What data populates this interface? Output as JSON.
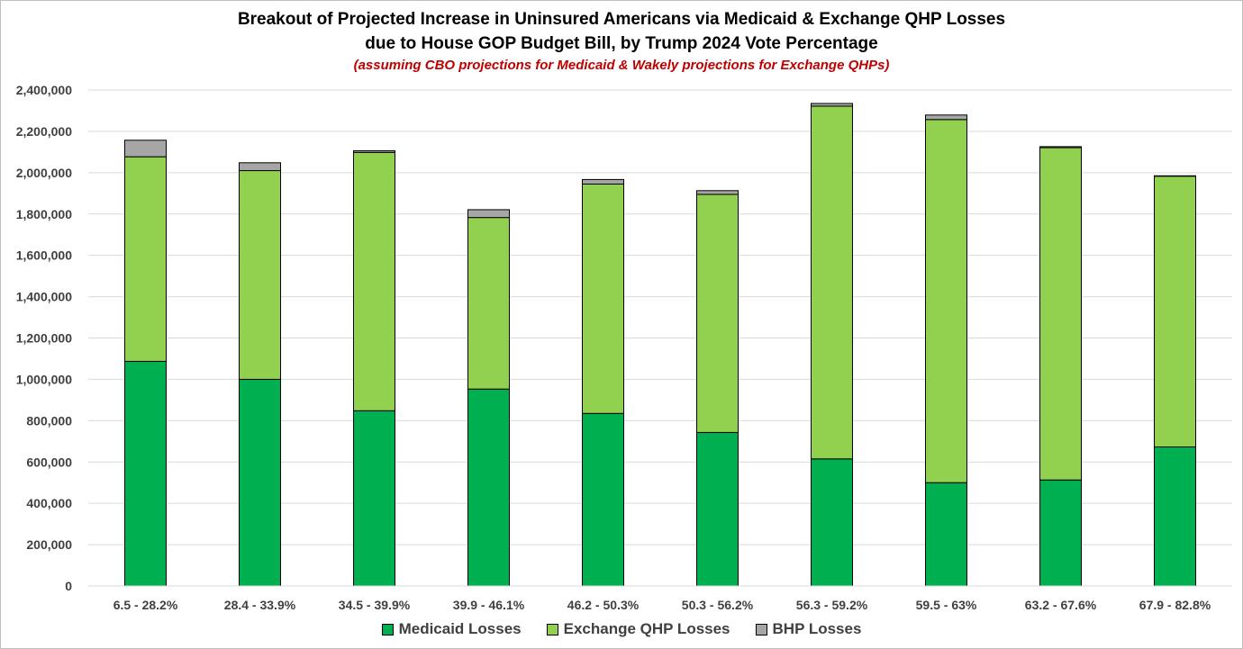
{
  "chart_data": {
    "type": "bar",
    "stacked": true,
    "title_line1": "Breakout of Projected Increase in Uninsured Americans via Medicaid & Exchange QHP Losses",
    "title_line2": "due to House GOP Budget Bill, by Trump 2024 Vote Percentage",
    "subtitle": "(assuming CBO projections for Medicaid & Wakely projections for Exchange QHPs)",
    "categories": [
      "6.5 - 28.2%",
      "28.4 - 33.9%",
      "34.5 - 39.9%",
      "39.9 - 46.1%",
      "46.2 - 50.3%",
      "50.3 - 56.2%",
      "56.3 - 59.2%",
      "59.5 - 63%",
      "63.2 - 67.6%",
      "67.9 - 82.8%"
    ],
    "series": [
      {
        "name": "Medicaid Losses",
        "color": "#00b050",
        "values": [
          1087000,
          1000000,
          848000,
          953000,
          835000,
          743000,
          615000,
          500000,
          513000,
          673000
        ]
      },
      {
        "name": "Exchange QHP Losses",
        "color": "#92d050",
        "values": [
          990000,
          1010000,
          1250000,
          830000,
          1110000,
          1152000,
          1707000,
          1757000,
          1608000,
          1310000
        ]
      },
      {
        "name": "BHP Losses",
        "color": "#a6a6a6",
        "values": [
          80000,
          38000,
          8000,
          38000,
          22000,
          18000,
          13000,
          22000,
          5000,
          2000
        ]
      }
    ],
    "ylim": [
      0,
      2400000
    ],
    "yticks": [
      "0",
      "200,000",
      "400,000",
      "600,000",
      "800,000",
      "1,000,000",
      "1,200,000",
      "1,400,000",
      "1,600,000",
      "1,800,000",
      "2,000,000",
      "2,200,000",
      "2,400,000"
    ],
    "grid": true,
    "legend_position": "bottom"
  }
}
